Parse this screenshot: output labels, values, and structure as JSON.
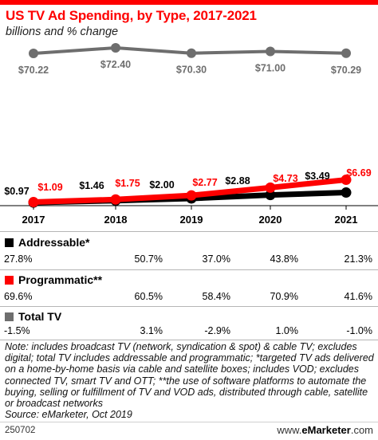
{
  "title": "US TV Ad Spending, by Type, 2017-2021",
  "subtitle": "billions and % change",
  "chart_data": [
    {
      "type": "line",
      "series_label": "Total TV",
      "x": [
        "2017",
        "2018",
        "2019",
        "2020",
        "2021"
      ],
      "values": [
        70.22,
        72.4,
        70.3,
        71.0,
        70.29
      ],
      "labels": [
        "$70.22",
        "$72.40",
        "$70.30",
        "$71.00",
        "$70.29"
      ],
      "color": "#6e6e6e"
    },
    {
      "type": "line",
      "x": [
        "2017",
        "2018",
        "2019",
        "2020",
        "2021"
      ],
      "series": [
        {
          "name": "Addressable*",
          "values": [
            0.97,
            1.46,
            2.0,
            2.88,
            3.49
          ],
          "labels": [
            "$0.97",
            "$1.46",
            "$2.00",
            "$2.88",
            "$3.49"
          ],
          "color": "#000000"
        },
        {
          "name": "Programmatic**",
          "values": [
            1.09,
            1.75,
            2.77,
            4.73,
            6.69
          ],
          "labels": [
            "$1.09",
            "$1.75",
            "$2.77",
            "$4.73",
            "$6.69"
          ],
          "color": "#fe0000"
        }
      ],
      "ylim": [
        0,
        8
      ]
    }
  ],
  "tables": [
    {
      "name": "Addressable*",
      "color": "#000000",
      "values": [
        "27.8%",
        "50.7%",
        "37.0%",
        "43.8%",
        "21.3%"
      ]
    },
    {
      "name": "Programmatic**",
      "color": "#fe0000",
      "values": [
        "69.6%",
        "60.5%",
        "58.4%",
        "70.9%",
        "41.6%"
      ]
    },
    {
      "name": "Total TV",
      "color": "#6e6e6e",
      "values": [
        "-1.5%",
        "3.1%",
        "-2.9%",
        "1.0%",
        "-1.0%"
      ]
    }
  ],
  "note": "Note: includes broadcast TV (network, syndication & spot) & cable TV; excludes digital; total TV includes addressable and programmatic; *targeted TV ads delivered on a home-by-home basis via cable and satellite boxes; includes VOD; excludes connected TV, smart TV and OTT; **the use of software platforms to automate the buying, selling or fulfillment of TV and VOD ads, distributed through cable, satellite or broadcast networks",
  "source": "Source: eMarketer, Oct 2019",
  "footer_id": "250702",
  "footer_site_prefix": "www.",
  "footer_site_brand": "eMarketer",
  "footer_site_suffix": ".com"
}
